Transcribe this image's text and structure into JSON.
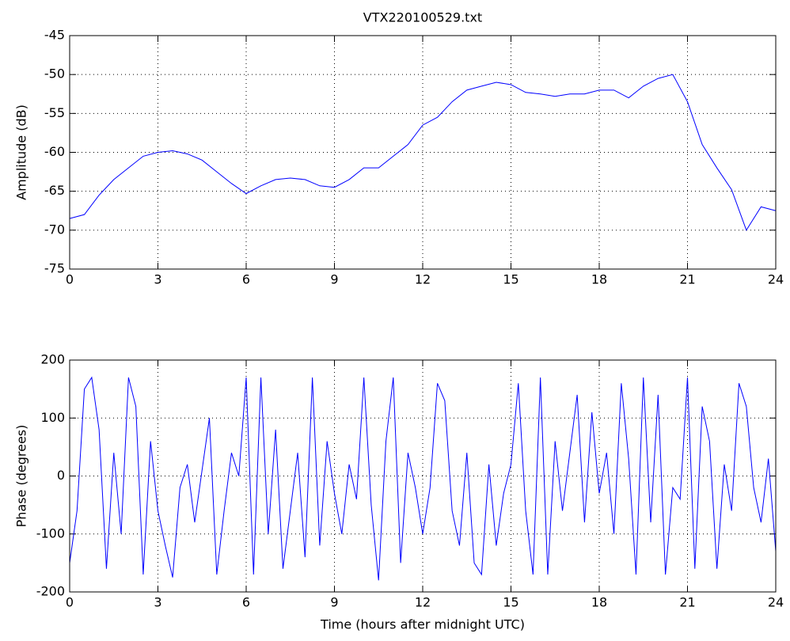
{
  "chart_data": [
    {
      "type": "line",
      "title": "VTX220100529.txt",
      "ylabel": "Amplitude (dB)",
      "xlim": [
        0,
        24
      ],
      "xticks": [
        0,
        3,
        6,
        9,
        12,
        15,
        18,
        21,
        24
      ],
      "ylim": [
        -75,
        -45
      ],
      "yticks": [
        -75,
        -70,
        -65,
        -60,
        -55,
        -50,
        -45
      ],
      "grid": true,
      "x": [
        0,
        0.5,
        1,
        1.5,
        2,
        2.5,
        3,
        3.5,
        4,
        4.5,
        5,
        5.5,
        6,
        6.5,
        7,
        7.5,
        8,
        8.5,
        9,
        9.5,
        10,
        10.5,
        11,
        11.5,
        12,
        12.5,
        13,
        13.5,
        14,
        14.5,
        15,
        15.5,
        16,
        16.5,
        17,
        17.5,
        18,
        18.5,
        19,
        19.5,
        20,
        20.5,
        21,
        21.5,
        22,
        22.5,
        23,
        23.5,
        24
      ],
      "series": [
        {
          "color": "#0000ff",
          "values": [
            -68.5,
            -68,
            -65.5,
            -63.5,
            -62,
            -60.5,
            -60,
            -59.8,
            -60.2,
            -61,
            -62.5,
            -64,
            -65.3,
            -64.3,
            -63.5,
            -63.3,
            -63.5,
            -64.3,
            -64.5,
            -63.5,
            -62,
            -62,
            -60.5,
            -59,
            -56.5,
            -55.5,
            -53.5,
            -52,
            -51.5,
            -51,
            -51.3,
            -52.3,
            -52.5,
            -52.8,
            -52.5,
            -52.5,
            -52,
            -52,
            -53,
            -51.5,
            -50.5,
            -50,
            -53.5,
            -59,
            -62,
            -64.8,
            -70,
            -67,
            -67.5
          ]
        }
      ]
    },
    {
      "type": "line",
      "ylabel": "Phase (degrees)",
      "xlabel": "Time (hours after midnight UTC)",
      "xlim": [
        0,
        24
      ],
      "xticks": [
        0,
        3,
        6,
        9,
        12,
        15,
        18,
        21,
        24
      ],
      "ylim": [
        -200,
        200
      ],
      "yticks": [
        -200,
        -100,
        0,
        100,
        200
      ],
      "grid": true,
      "x": [
        0,
        0.25,
        0.5,
        0.75,
        1,
        1.25,
        1.5,
        1.75,
        2,
        2.25,
        2.5,
        2.75,
        3,
        3.25,
        3.5,
        3.75,
        4,
        4.25,
        4.5,
        4.75,
        5,
        5.25,
        5.5,
        5.75,
        6,
        6.25,
        6.5,
        6.75,
        7,
        7.25,
        7.5,
        7.75,
        8,
        8.25,
        8.5,
        8.75,
        9,
        9.25,
        9.5,
        9.75,
        10,
        10.25,
        10.5,
        10.75,
        11,
        11.25,
        11.5,
        11.75,
        12,
        12.25,
        12.5,
        12.75,
        13,
        13.25,
        13.5,
        13.75,
        14,
        14.25,
        14.5,
        14.75,
        15,
        15.25,
        15.5,
        15.75,
        16,
        16.25,
        16.5,
        16.75,
        17,
        17.25,
        17.5,
        17.75,
        18,
        18.25,
        18.5,
        18.75,
        19,
        19.25,
        19.5,
        19.75,
        20,
        20.25,
        20.5,
        20.75,
        21,
        21.25,
        21.5,
        21.75,
        22,
        22.25,
        22.5,
        22.75,
        23,
        23.25,
        23.5,
        23.75,
        24
      ],
      "series": [
        {
          "color": "#0000ff",
          "values": [
            -150,
            -60,
            150,
            170,
            80,
            -160,
            40,
            -100,
            170,
            120,
            -170,
            60,
            -60,
            -120,
            -175,
            -20,
            20,
            -80,
            10,
            100,
            -170,
            -60,
            40,
            0,
            170,
            -170,
            170,
            -100,
            80,
            -160,
            -60,
            40,
            -140,
            170,
            -120,
            60,
            -30,
            -100,
            20,
            -40,
            170,
            -50,
            -180,
            60,
            170,
            -150,
            40,
            -20,
            -100,
            -20,
            160,
            130,
            -60,
            -120,
            40,
            -150,
            -170,
            20,
            -120,
            -30,
            20,
            160,
            -60,
            -170,
            170,
            -170,
            60,
            -60,
            40,
            140,
            -80,
            110,
            -30,
            40,
            -100,
            160,
            30,
            -170,
            170,
            -80,
            140,
            -170,
            -20,
            -40,
            170,
            -160,
            120,
            60,
            -160,
            20,
            -60,
            160,
            120,
            -20,
            -80,
            30,
            -130
          ]
        }
      ]
    }
  ]
}
